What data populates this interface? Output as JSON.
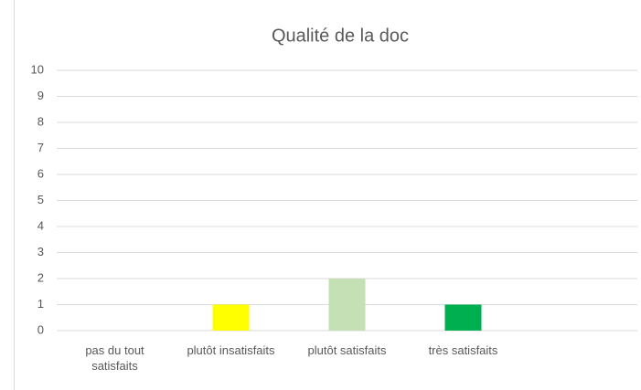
{
  "chart_data": {
    "type": "bar",
    "title": "Qualité de la doc",
    "categories": [
      "pas du tout satisfaits",
      "plutôt insatisfaits",
      "plutôt satisfaits",
      "très satisfaits",
      null
    ],
    "values": [
      0,
      1,
      2,
      1,
      null
    ],
    "colors": [
      null,
      "#ffff00",
      "#c5e0b4",
      "#00b050",
      null
    ],
    "ylim": [
      0,
      10
    ],
    "yticks": [
      0,
      1,
      2,
      3,
      4,
      5,
      6,
      7,
      8,
      9,
      10
    ],
    "grid": true
  }
}
